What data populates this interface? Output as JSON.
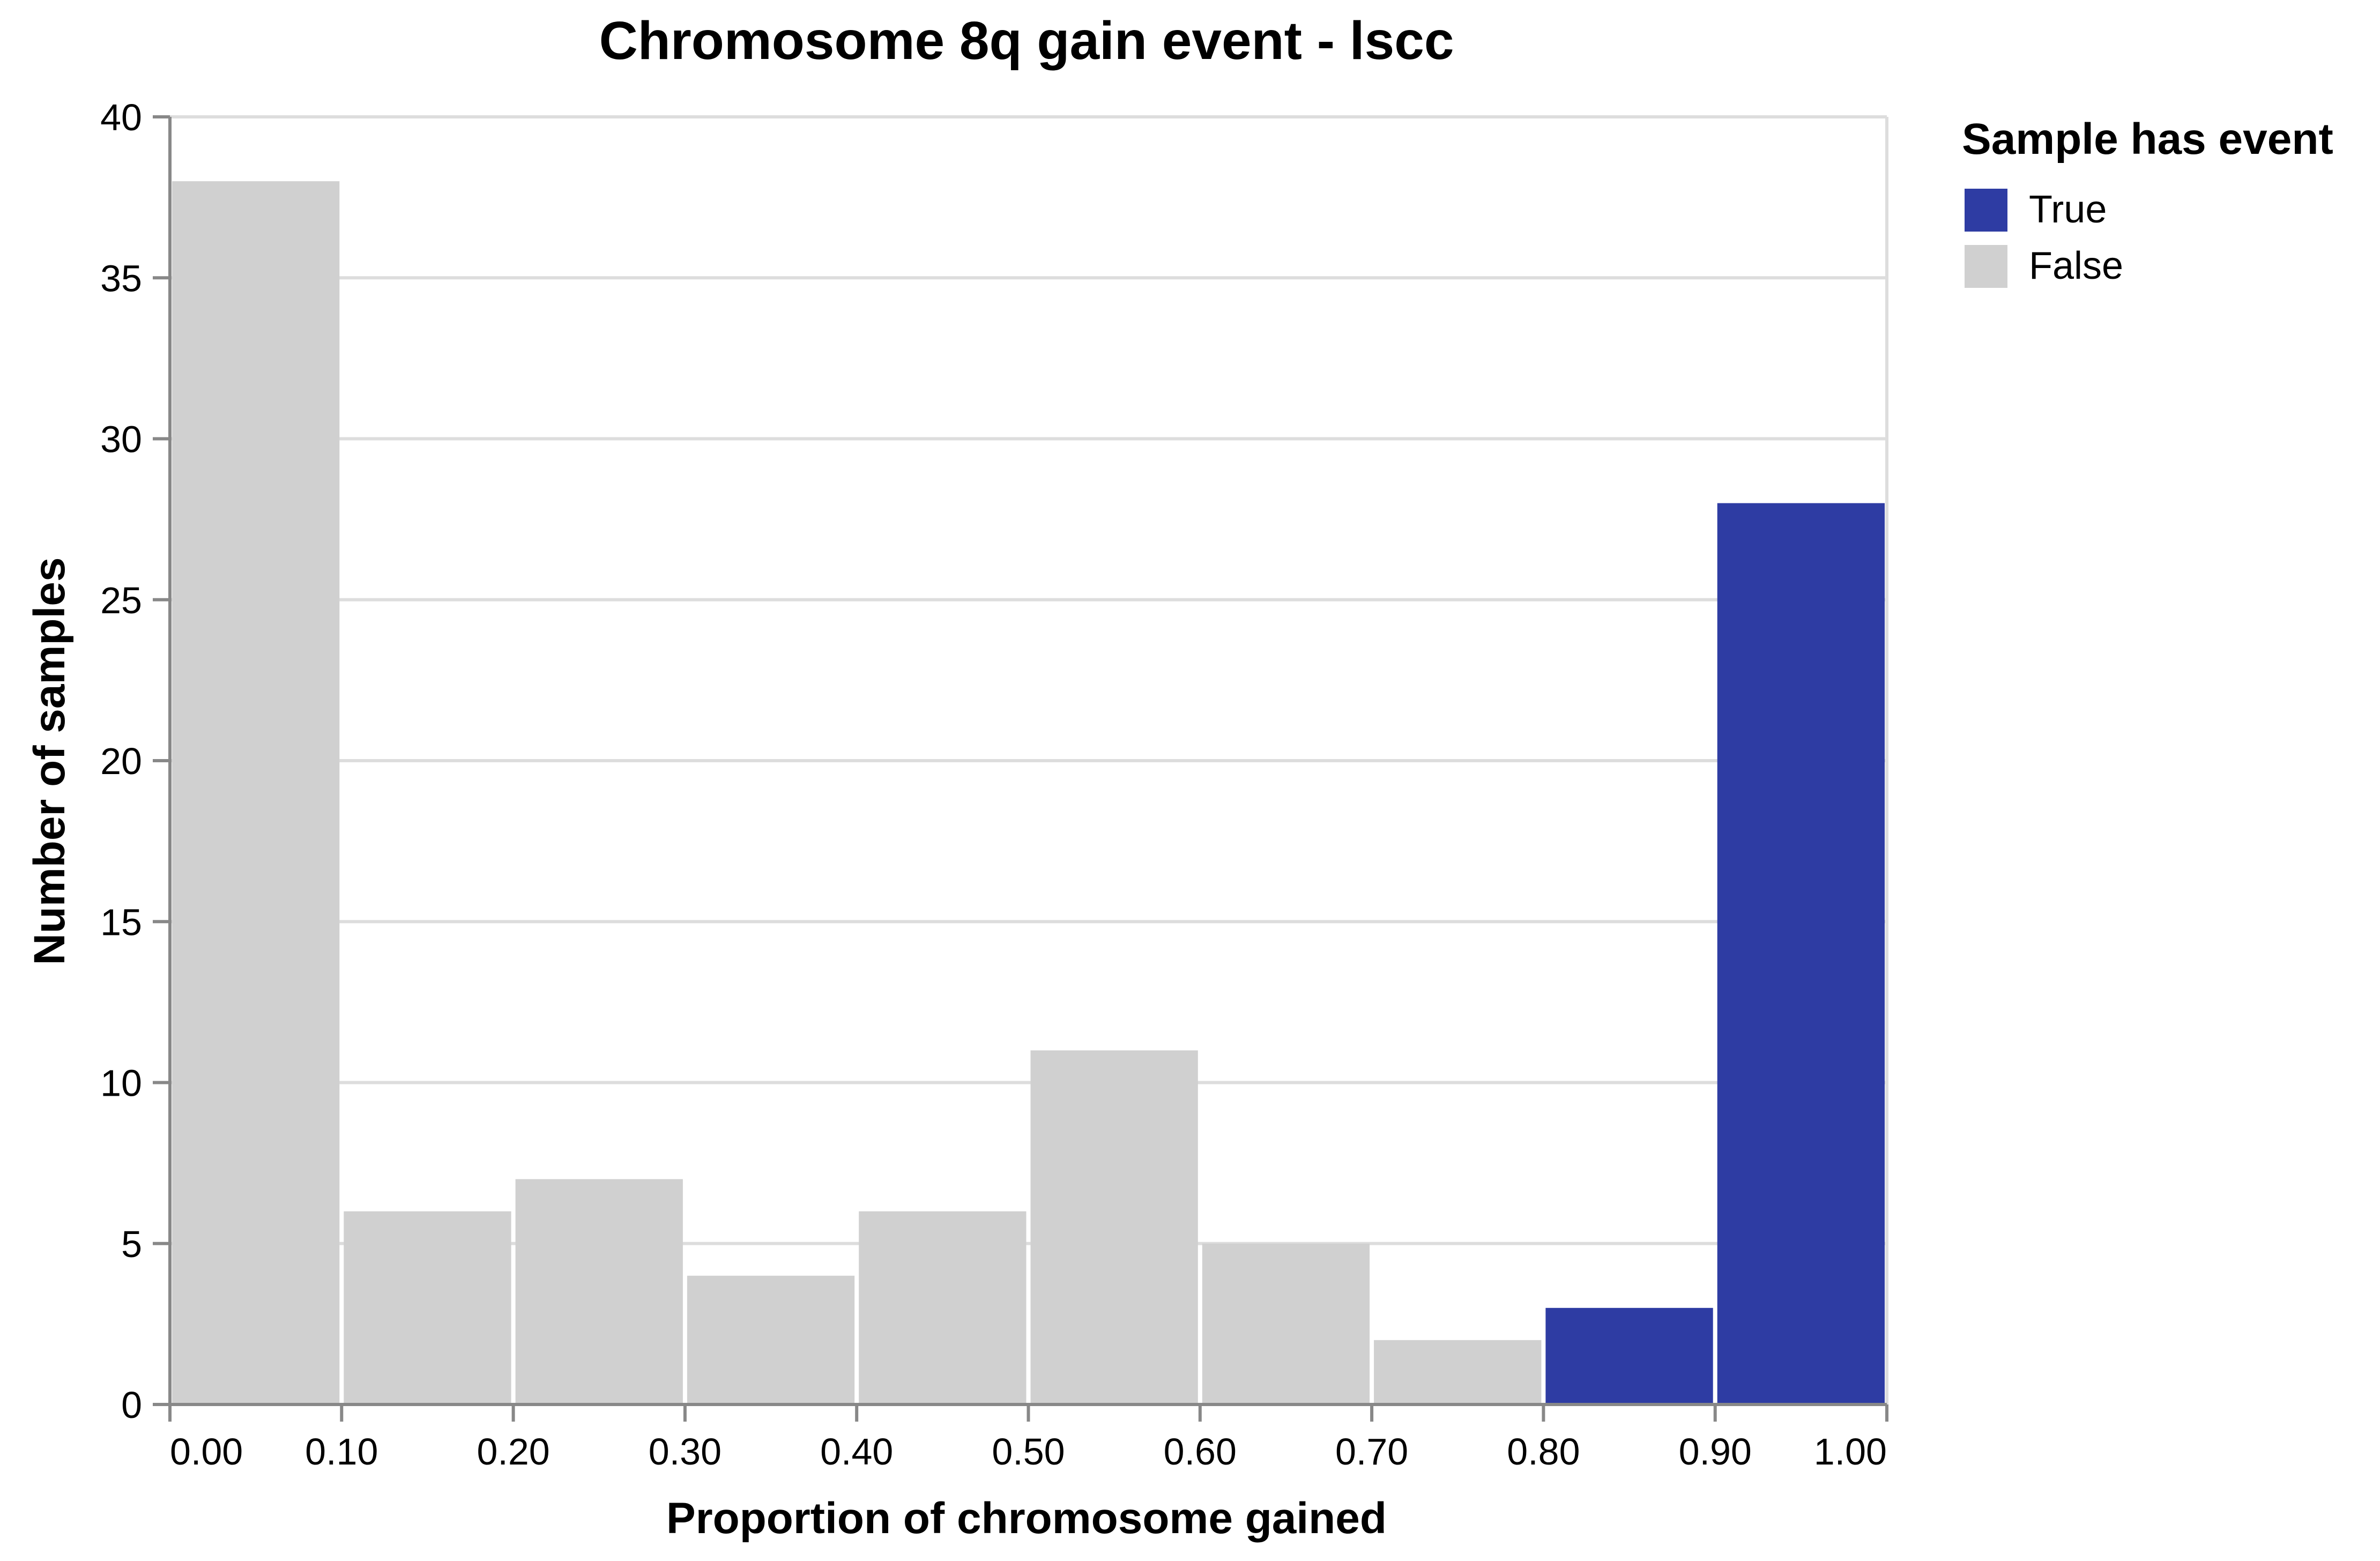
{
  "chart_data": {
    "type": "bar",
    "title": "Chromosome 8q gain event - lscc",
    "xlabel": "Proportion of chromosome gained",
    "ylabel": "Number of samples",
    "xlim": [
      0,
      1
    ],
    "ylim": [
      0,
      40
    ],
    "x_ticks": [
      "0.00",
      "0.10",
      "0.20",
      "0.30",
      "0.40",
      "0.50",
      "0.60",
      "0.70",
      "0.80",
      "0.90",
      "1.00"
    ],
    "y_ticks": [
      "0",
      "5",
      "10",
      "15",
      "20",
      "25",
      "30",
      "35",
      "40"
    ],
    "bins": [
      {
        "x0": 0.0,
        "x1": 0.1,
        "count": 38,
        "event": "False"
      },
      {
        "x0": 0.1,
        "x1": 0.2,
        "count": 6,
        "event": "False"
      },
      {
        "x0": 0.2,
        "x1": 0.3,
        "count": 7,
        "event": "False"
      },
      {
        "x0": 0.3,
        "x1": 0.4,
        "count": 4,
        "event": "False"
      },
      {
        "x0": 0.4,
        "x1": 0.5,
        "count": 6,
        "event": "False"
      },
      {
        "x0": 0.5,
        "x1": 0.6,
        "count": 11,
        "event": "False"
      },
      {
        "x0": 0.6,
        "x1": 0.7,
        "count": 5,
        "event": "False"
      },
      {
        "x0": 0.7,
        "x1": 0.8,
        "count": 2,
        "event": "False"
      },
      {
        "x0": 0.8,
        "x1": 0.9,
        "count": 3,
        "event": "True"
      },
      {
        "x0": 0.9,
        "x1": 1.0,
        "count": 28,
        "event": "True"
      }
    ],
    "grid": true,
    "legend": {
      "title": "Sample has event",
      "placement": "right",
      "items": [
        {
          "label": "True",
          "color": "#2e3ca3"
        },
        {
          "label": "False",
          "color": "#d0d0d0"
        }
      ]
    }
  }
}
